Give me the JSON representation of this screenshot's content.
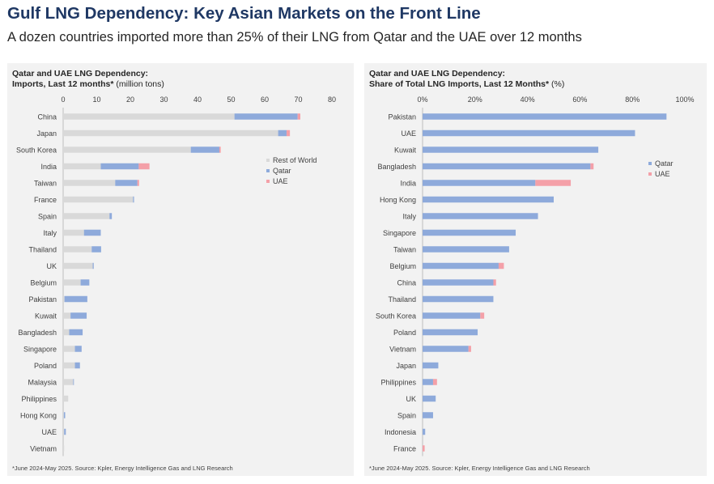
{
  "header": {
    "title": "Gulf LNG Dependency: Key Asian Markets on the Front Line",
    "subtitle": "A dozen countries imported more than 25% of their LNG from Qatar and the UAE over 12 months"
  },
  "colors": {
    "rest_of_world": "#d9d9d9",
    "qatar": "#8eaadb",
    "uae": "#f4a0a8",
    "title": "#1f3864",
    "panel_bg": "#f2f2f2"
  },
  "chart_data": [
    {
      "type": "bar",
      "orientation": "horizontal",
      "stacked": true,
      "title_line1": "Qatar and UAE LNG Dependency:",
      "title_line2": "Imports, Last 12 months*",
      "title_unit": " (million tons)",
      "xlim": [
        0,
        80
      ],
      "xticks": [
        "0",
        "10",
        "20",
        "30",
        "40",
        "50",
        "60",
        "70",
        "80"
      ],
      "xtick_values": [
        0,
        10,
        20,
        30,
        40,
        50,
        60,
        70,
        80
      ],
      "legend_position": "right-middle",
      "categories": [
        "China",
        "Japan",
        "South Korea",
        "India",
        "Taiwan",
        "France",
        "Spain",
        "Italy",
        "Thailand",
        "UK",
        "Belgium",
        "Pakistan",
        "Kuwait",
        "Bangladesh",
        "Singapore",
        "Poland",
        "Malaysia",
        "Philippines",
        "Hong Kong",
        "UAE",
        "Vietnam"
      ],
      "series": [
        {
          "name": "Rest of World",
          "color_key": "rest_of_world",
          "values": [
            51,
            64,
            38,
            11.2,
            15.5,
            20.8,
            13.8,
            6.2,
            8.5,
            8.8,
            5.2,
            0.4,
            2.2,
            1.8,
            3.5,
            3.5,
            3.0,
            1.5,
            0.2,
            0.3,
            0.3
          ]
        },
        {
          "name": "Qatar",
          "color_key": "qatar",
          "values": [
            18.8,
            2.5,
            8.5,
            11.3,
            6.6,
            0.3,
            0.7,
            5.0,
            2.8,
            0.3,
            2.6,
            6.8,
            4.8,
            4.0,
            2.0,
            1.5,
            0.2,
            0,
            0.4,
            0.5,
            0
          ]
        },
        {
          "name": "UAE",
          "color_key": "uae",
          "values": [
            0.8,
            1.0,
            0.4,
            3.2,
            0.5,
            0,
            0,
            0,
            0,
            0,
            0,
            0,
            0,
            0,
            0,
            0,
            0,
            0,
            0,
            0,
            0
          ]
        }
      ],
      "footnote": "*June 2024-May 2025. Source: Kpler, Energy Intelligence Gas and LNG Research"
    },
    {
      "type": "bar",
      "orientation": "horizontal",
      "stacked": true,
      "title_line1": "Qatar and UAE LNG Dependency:",
      "title_line2": "Share of Total LNG Imports, Last 12 Months*",
      "title_unit": " (%)",
      "xlim": [
        0,
        100
      ],
      "xticks": [
        "0%",
        "20%",
        "40%",
        "60%",
        "80%",
        "100%"
      ],
      "xtick_values": [
        0,
        20,
        40,
        60,
        80,
        100
      ],
      "legend_position": "right-middle",
      "categories": [
        "Pakistan",
        "UAE",
        "Kuwait",
        "Bangladesh",
        "India",
        "Hong Kong",
        "Italy",
        "Singapore",
        "Taiwan",
        "Belgium",
        "China",
        "Thailand",
        "South Korea",
        "Poland",
        "Vietnam",
        "Japan",
        "Philippines",
        "UK",
        "Spain",
        "Indonesia",
        "France"
      ],
      "series": [
        {
          "name": "Qatar",
          "color_key": "qatar",
          "values": [
            93,
            81,
            67,
            64,
            43,
            50,
            44,
            35.5,
            33,
            29,
            27,
            27,
            22,
            21,
            17.5,
            6,
            4,
            5,
            4,
            1,
            0
          ]
        },
        {
          "name": "UAE",
          "color_key": "uae",
          "values": [
            0,
            0,
            0,
            1.2,
            13.5,
            0,
            0,
            0,
            0,
            2,
            1,
            0,
            1.5,
            0,
            1,
            0,
            1.5,
            0,
            0,
            0,
            0.8
          ]
        }
      ],
      "footnote": "*June 2024-May 2025. Source: Kpler, Energy Intelligence Gas and LNG Research"
    }
  ]
}
